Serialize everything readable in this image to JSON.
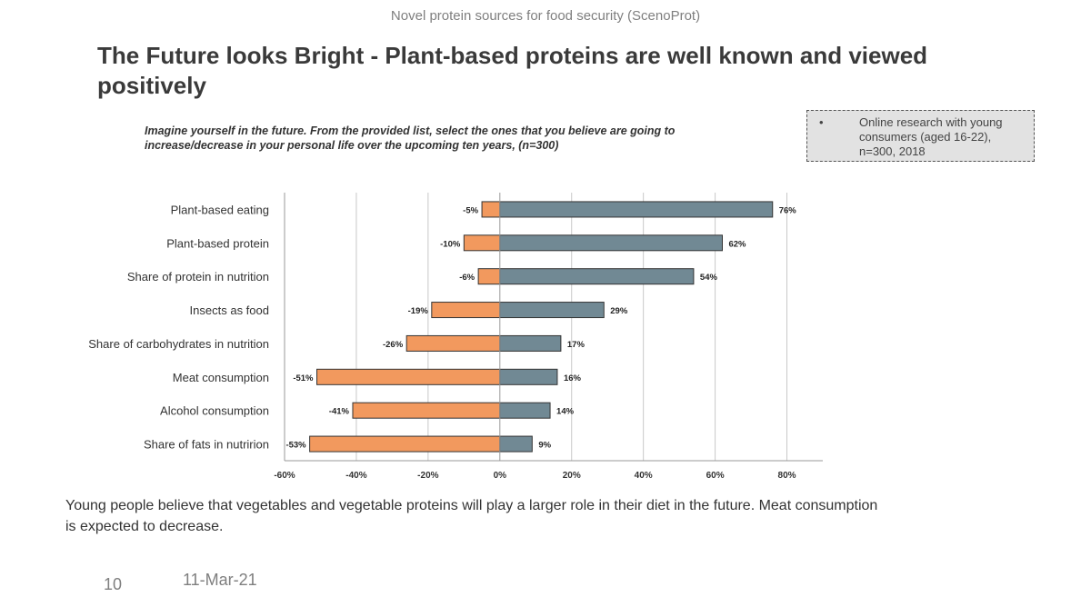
{
  "header": {
    "text": "Novel protein sources for food security  (ScenoProt)"
  },
  "title": "The Future looks Bright - Plant-based proteins are well known and viewed positively",
  "question": "Imagine yourself in the future. From the provided list, select the ones that you believe are going to increase/decrease in your personal life over the upcoming ten years, (n=300)",
  "note": {
    "bullet": "•",
    "text": "Online research with young consumers (aged 16-22), n=300, 2018"
  },
  "summary": "Young people believe that vegetables and vegetable proteins will play a larger role in their diet in the future. Meat consumption is expected to decrease.",
  "footer": {
    "page_number": "10",
    "date": "11-Mar-21"
  },
  "colors": {
    "increase": "#718994",
    "decrease": "#f2995e",
    "grid": "#c8c8c8"
  },
  "chart_data": {
    "type": "bar",
    "orientation": "horizontal",
    "stacked": "diverging",
    "categories": [
      "Plant-based eating",
      "Plant-based protein",
      "Share of protein in nutrition",
      "Insects as food",
      "Share of carbohydrates in nutrition",
      "Meat consumption",
      "Alcohol consumption",
      "Share of fats in nutririon"
    ],
    "series": [
      {
        "values": [
          -5,
          -10,
          -6,
          -19,
          -26,
          -51,
          -41,
          -53
        ],
        "labels": [
          "-5%",
          "-10%",
          "-6%",
          "-19%",
          "-26%",
          "-51%",
          "-41%",
          "-53%"
        ]
      },
      {
        "values": [
          76,
          62,
          54,
          29,
          17,
          16,
          14,
          9
        ],
        "labels": [
          "76%",
          "62%",
          "54%",
          "29%",
          "17%",
          "16%",
          "14%",
          "9%"
        ]
      }
    ],
    "xlim": [
      -60,
      90
    ],
    "xticks": [
      -60,
      -40,
      -20,
      0,
      20,
      40,
      60,
      80
    ],
    "xtick_labels": [
      "-60%",
      "-40%",
      "-20%",
      "0%",
      "20%",
      "40%",
      "60%",
      "80%"
    ],
    "grid": true,
    "legend": "none"
  }
}
